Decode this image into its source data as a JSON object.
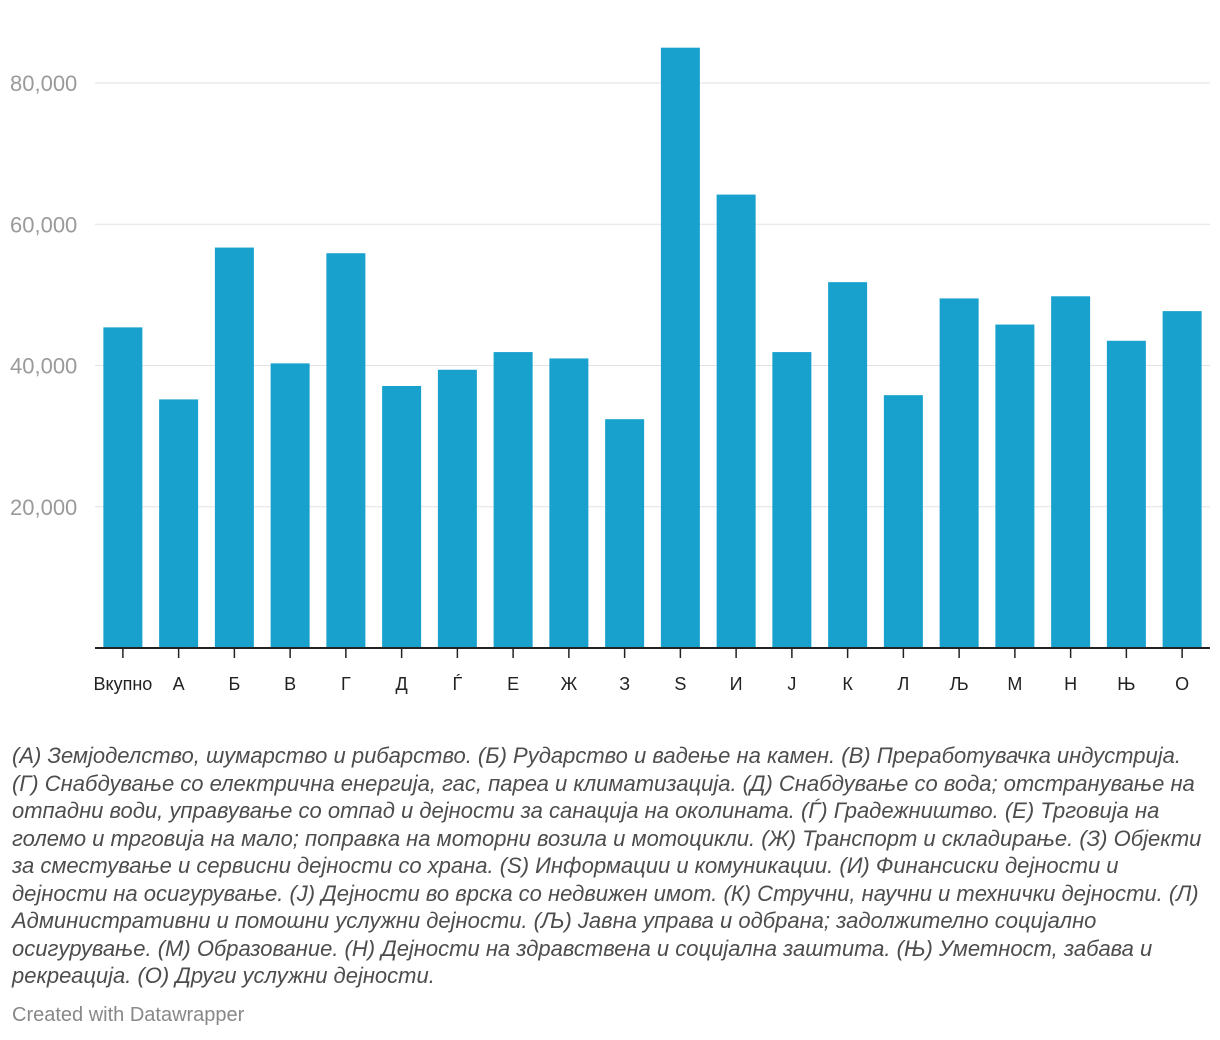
{
  "chart_data": {
    "type": "bar",
    "categories": [
      "Вкупно",
      "А",
      "Б",
      "В",
      "Г",
      "Д",
      "Ѓ",
      "Е",
      "Ж",
      "З",
      "Ѕ",
      "И",
      "Ј",
      "К",
      "Л",
      "Љ",
      "М",
      "Н",
      "Њ",
      "О"
    ],
    "values": [
      45400,
      35200,
      56700,
      40300,
      55900,
      37100,
      39400,
      41900,
      41000,
      32400,
      85000,
      64200,
      41900,
      51800,
      35800,
      49500,
      45800,
      49800,
      43500,
      47700
    ],
    "y_ticks": [
      "20,000",
      "40,000",
      "60,000",
      "80,000"
    ],
    "y_tick_values": [
      20000,
      40000,
      60000,
      80000
    ],
    "ylim": [
      0,
      88000
    ],
    "grid": true,
    "bar_color": "#18a1cd"
  },
  "notes": "(А) Земјоделство, шумарство и рибарство. (Б) Рударство и вадење на камен. (В) Преработувачка индустрија. (Г) Снабдување со електрична енергија, гас, пареа и климатизација. (Д) Снабдување со вода; отстранување на отпадни води, управување со отпад и дејности за санација на околината. (Ѓ) Градежништво. (Е) Трговија на големо и трговија на мало; поправка на моторни возила и мотоцикли. (Ж) Транспорт и складирање. (З) Објекти за сместување и сервисни дејности со храна. (Ѕ) Информации и комуникации. (И) Финансиски дејности и дејности на осигурување. (Ј) Дејности во врска со недвижен имот. (К) Стручни, научни и технички дејности. (Л) Административни и помошни услужни дејности. (Љ) Јавна управа и одбрана; задолжително социјално осигурување. (М) Образование. (Н) Дејности на здравствена и социјална заштита. (Њ) Уметност, забава и рекреација. (О) Други услужни дејности.",
  "credit": "Created with Datawrapper"
}
